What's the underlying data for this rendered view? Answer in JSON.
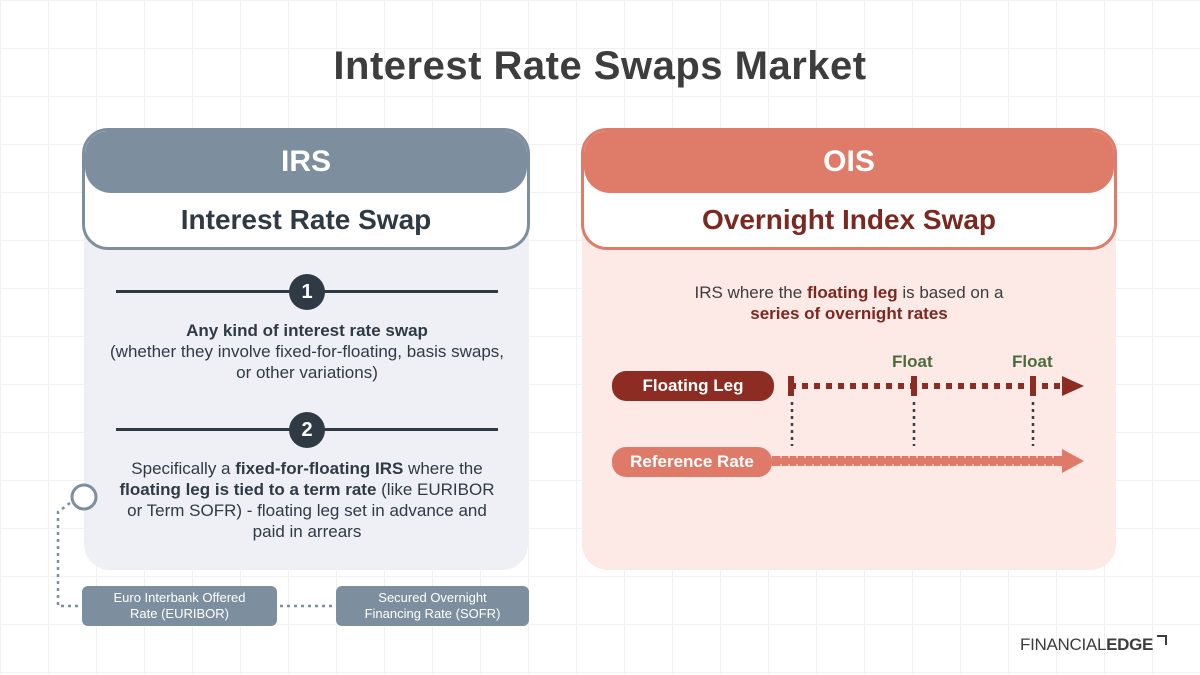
{
  "title": "Interest Rate Swaps Market",
  "irs": {
    "abbr": "IRS",
    "name": "Interest Rate Swap",
    "points": [
      {
        "number": "1",
        "bold": "Any kind of interest rate swap",
        "text": "(whether they involve fixed-for-floating, basis swaps, or other variations)"
      },
      {
        "number": "2",
        "pre": "Specifically a ",
        "bold1": "fixed-for-floating IRS",
        "mid": " where the ",
        "bold2": "floating leg is tied to a term rate",
        "post": " (like EURIBOR or Term SOFR) - floating leg set in advance and paid in arrears"
      }
    ],
    "examples": [
      {
        "line1": "Euro Interbank Offered",
        "line2": "Rate (EURIBOR)"
      },
      {
        "line1": "Secured Overnight",
        "line2": "Financing Rate (SOFR)"
      }
    ]
  },
  "ois": {
    "abbr": "OIS",
    "name": "Overnight Index Swap",
    "desc_pre": "IRS where the ",
    "desc_bold1": "floating leg",
    "desc_mid": " is based on a",
    "desc_bold2": "series of overnight rates",
    "floating_leg_label": "Floating Leg",
    "reference_rate_label": "Reference Rate",
    "float_labels": [
      "Float",
      "Float"
    ]
  },
  "logo": {
    "part1": "FINANCIAL",
    "part2": "EDGE"
  },
  "colors": {
    "irs": "#7d8f9e",
    "ois": "#de7c69",
    "floating_leg": "#8c2c22",
    "reference_rate": "#e07a68",
    "float_label": "#4f6b3c"
  }
}
